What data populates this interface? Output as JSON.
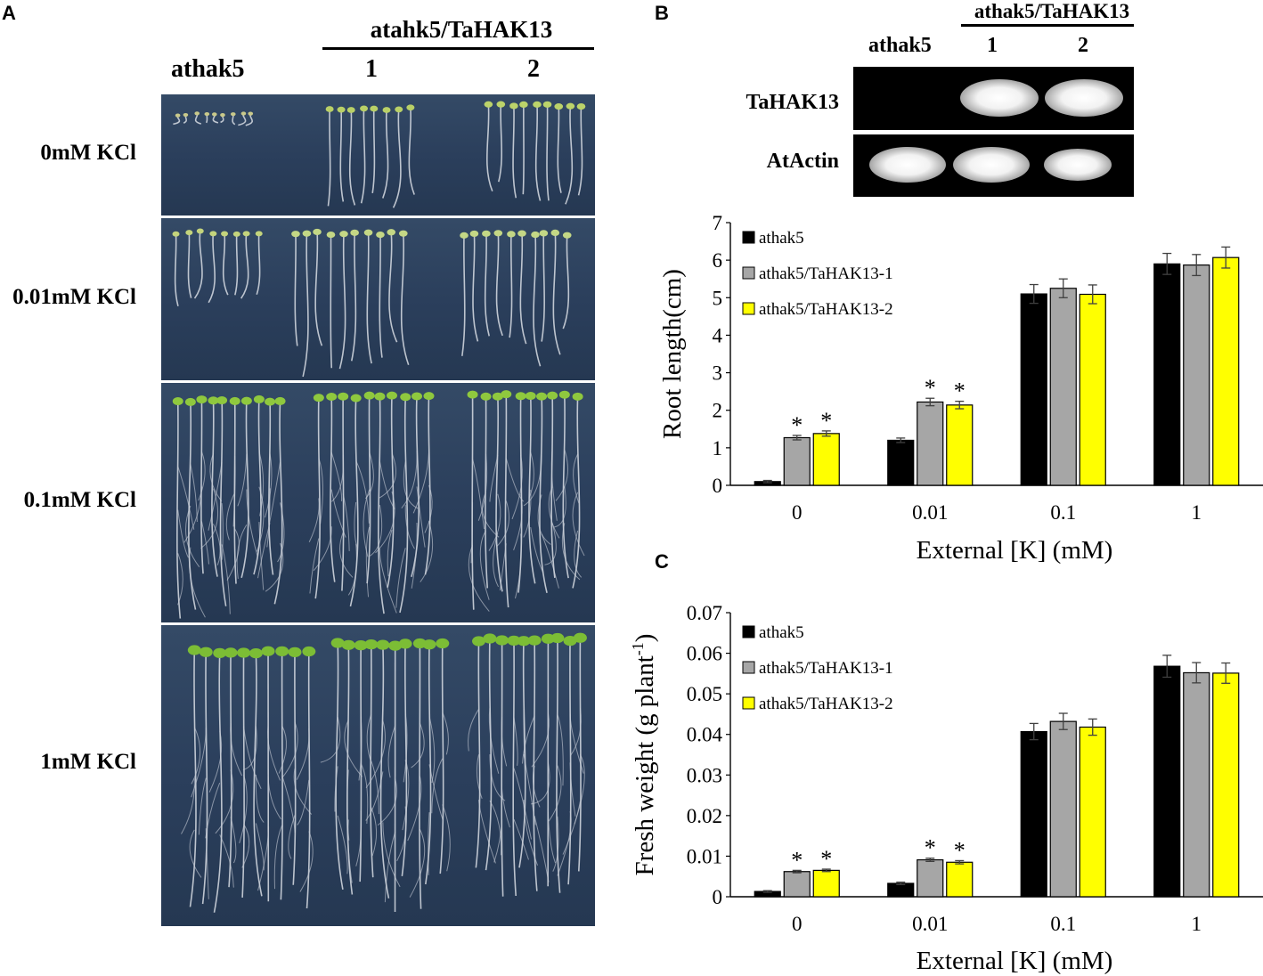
{
  "panel_a": {
    "letter": "A",
    "header_group": "atahk5/TaHAK13",
    "col_labels": [
      "athak5",
      "1",
      "2"
    ],
    "conditions": [
      "0mM KCl",
      "0.01mM KCl",
      "0.1mM KCl",
      "1mM KCl"
    ]
  },
  "panel_b": {
    "letter": "B",
    "gel_header_group": "athak5/TaHAK13",
    "gel_cols": [
      "athak5",
      "1",
      "2"
    ],
    "gel_rows": [
      "TaHAK13",
      "AtActin"
    ],
    "gel_bands": {
      "TaHAK13": [
        false,
        true,
        true
      ],
      "AtActin": [
        true,
        true,
        true
      ]
    }
  },
  "panel_c": {
    "letter": "C"
  },
  "colors": {
    "series1": "#000000",
    "series2": "#a6a6a6",
    "series3": "#ffff00"
  },
  "chart_data": [
    {
      "type": "bar",
      "categories": [
        "0",
        "0.01",
        "0.1",
        "1"
      ],
      "series": [
        {
          "name": "athak5",
          "values": [
            0.1,
            1.2,
            5.1,
            5.9
          ],
          "errors": [
            0.03,
            0.06,
            0.25,
            0.28
          ],
          "significant": [
            false,
            false,
            false,
            false
          ]
        },
        {
          "name": "athak5/TaHAK13-1",
          "values": [
            1.27,
            2.22,
            5.25,
            5.87
          ],
          "errors": [
            0.06,
            0.1,
            0.25,
            0.28
          ],
          "significant": [
            true,
            true,
            false,
            false
          ]
        },
        {
          "name": "athak5/TaHAK13-2",
          "values": [
            1.38,
            2.14,
            5.09,
            6.07
          ],
          "errors": [
            0.07,
            0.1,
            0.25,
            0.28
          ],
          "significant": [
            true,
            true,
            false,
            false
          ]
        }
      ],
      "ylim": [
        0,
        7
      ],
      "yticks": [
        "0",
        "1",
        "2",
        "3",
        "4",
        "5",
        "6",
        "7"
      ],
      "ylabel": "Root length(cm)",
      "xlabel": "External [K] (mM)",
      "sig_marker": "*",
      "legend": "top-left"
    },
    {
      "type": "bar",
      "categories": [
        "0",
        "0.01",
        "0.1",
        "1"
      ],
      "series": [
        {
          "name": "athak5",
          "values": [
            0.0013,
            0.0033,
            0.0407,
            0.0568
          ],
          "errors": [
            0.0002,
            0.0003,
            0.002,
            0.0027
          ],
          "significant": [
            false,
            false,
            false,
            false
          ]
        },
        {
          "name": "athak5/TaHAK13-1",
          "values": [
            0.0062,
            0.0091,
            0.0432,
            0.0552
          ],
          "errors": [
            0.0003,
            0.0004,
            0.002,
            0.0025
          ],
          "significant": [
            true,
            true,
            false,
            false
          ]
        },
        {
          "name": "athak5/TaHAK13-2",
          "values": [
            0.0065,
            0.0085,
            0.0418,
            0.0551
          ],
          "errors": [
            0.0003,
            0.0004,
            0.002,
            0.0025
          ],
          "significant": [
            true,
            true,
            false,
            false
          ]
        }
      ],
      "ylim": [
        0,
        0.07
      ],
      "yticks": [
        "0",
        "0.01",
        "0.02",
        "0.03",
        "0.04",
        "0.05",
        "0.06",
        "0.07"
      ],
      "ylabel_main": "Fresh weight (g plant",
      "ylabel_sup": "-1",
      "ylabel_end": ")",
      "xlabel": "External [K] (mM)",
      "sig_marker": "*",
      "legend": "top-left"
    }
  ]
}
